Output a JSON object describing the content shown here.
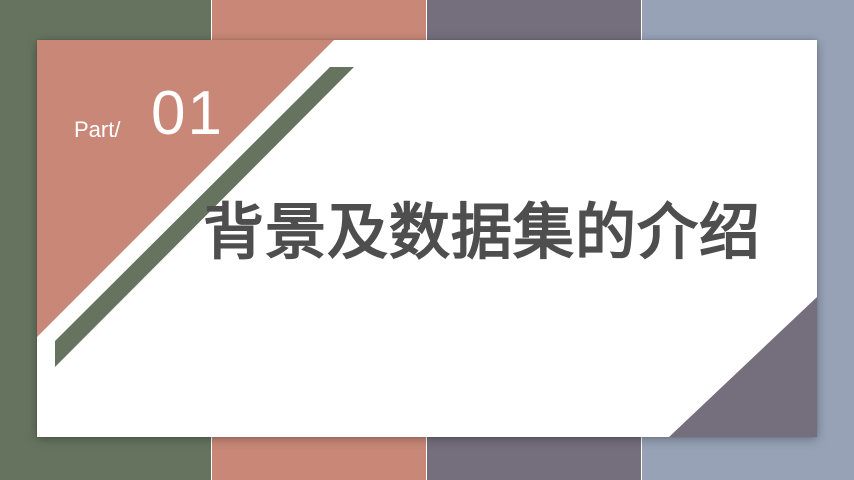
{
  "slide": {
    "part_label": "Part/",
    "part_number": "01",
    "title": "背景及数据集的介绍"
  },
  "colors": {
    "sage_green": "#66745f",
    "terracotta": "#c98877",
    "slate_purple": "#756f7d",
    "steel_blue": "#97a2b6",
    "title_text": "#4e4e4e",
    "card_background": "#ffffff"
  }
}
